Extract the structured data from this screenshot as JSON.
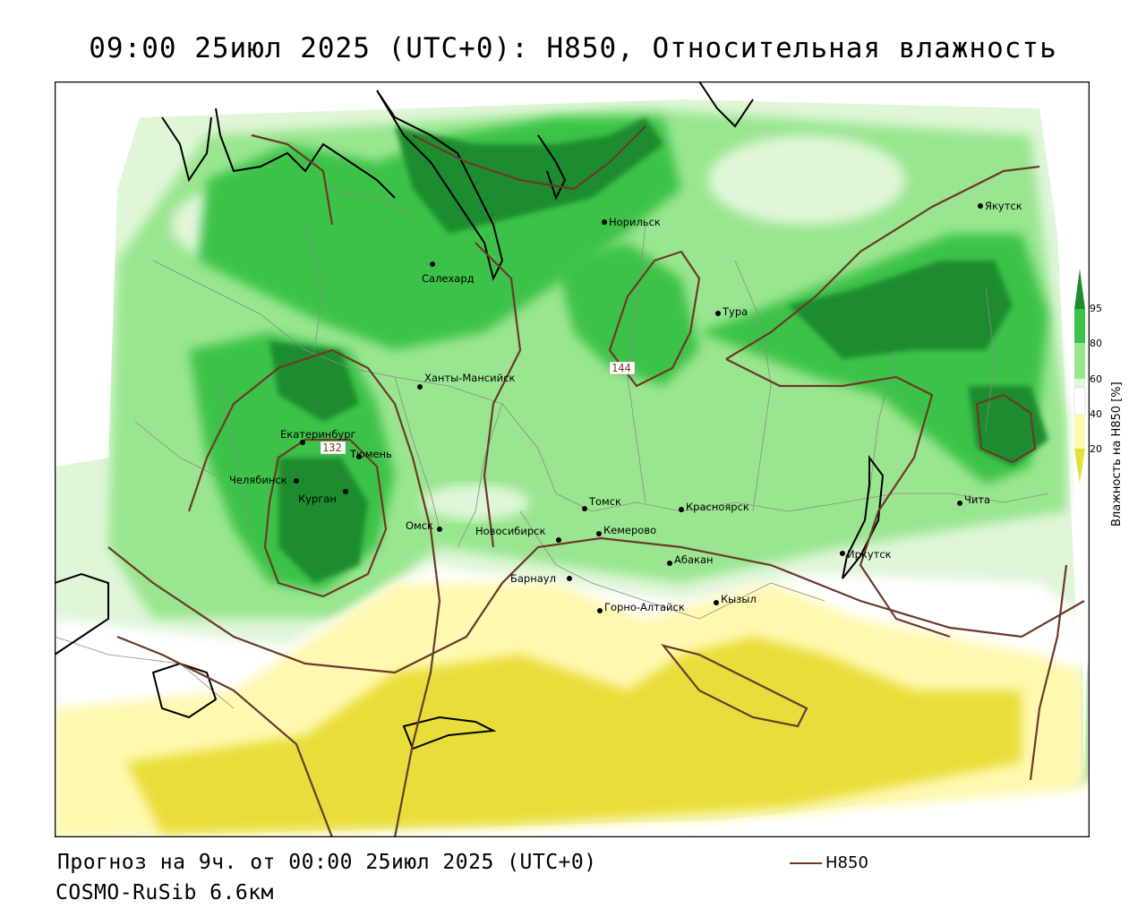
{
  "title": "09:00 25июл 2025 (UTC+0): H850, Относительная влажность",
  "footer": {
    "forecast": "Прогноз на 9ч. от 00:00 25июл 2025 (UTC+0)",
    "model": "COSMO-RuSib 6.6км",
    "contour_legend": "H850"
  },
  "colorbar": {
    "title": "Влажность на H850 [%]",
    "ticks": [
      "95",
      "80",
      "60",
      "40",
      "20"
    ],
    "colors": {
      "c95": "#1e8c2e",
      "c80": "#3cc24a",
      "c60": "#9ae690",
      "c50": "#dff6d8",
      "c40": "#ffffff",
      "c20": "#fff8b0",
      "c0": "#e8de3a"
    }
  },
  "contour_labels": [
    "144",
    "132"
  ],
  "cities": [
    {
      "name": "Норильск"
    },
    {
      "name": "Якутск"
    },
    {
      "name": "Салехард"
    },
    {
      "name": "Тура"
    },
    {
      "name": "Ханты-Мансийск"
    },
    {
      "name": "Екатеринбург"
    },
    {
      "name": "Тюмень"
    },
    {
      "name": "Челябинск"
    },
    {
      "name": "Курган"
    },
    {
      "name": "Омск"
    },
    {
      "name": "Томск"
    },
    {
      "name": "Красноярск"
    },
    {
      "name": "Новосибирск"
    },
    {
      "name": "Кемерово"
    },
    {
      "name": "Абакан"
    },
    {
      "name": "Иркутск"
    },
    {
      "name": "Чита"
    },
    {
      "name": "Барнаул"
    },
    {
      "name": "Горно-Алтайск"
    },
    {
      "name": "Кызыл"
    }
  ]
}
